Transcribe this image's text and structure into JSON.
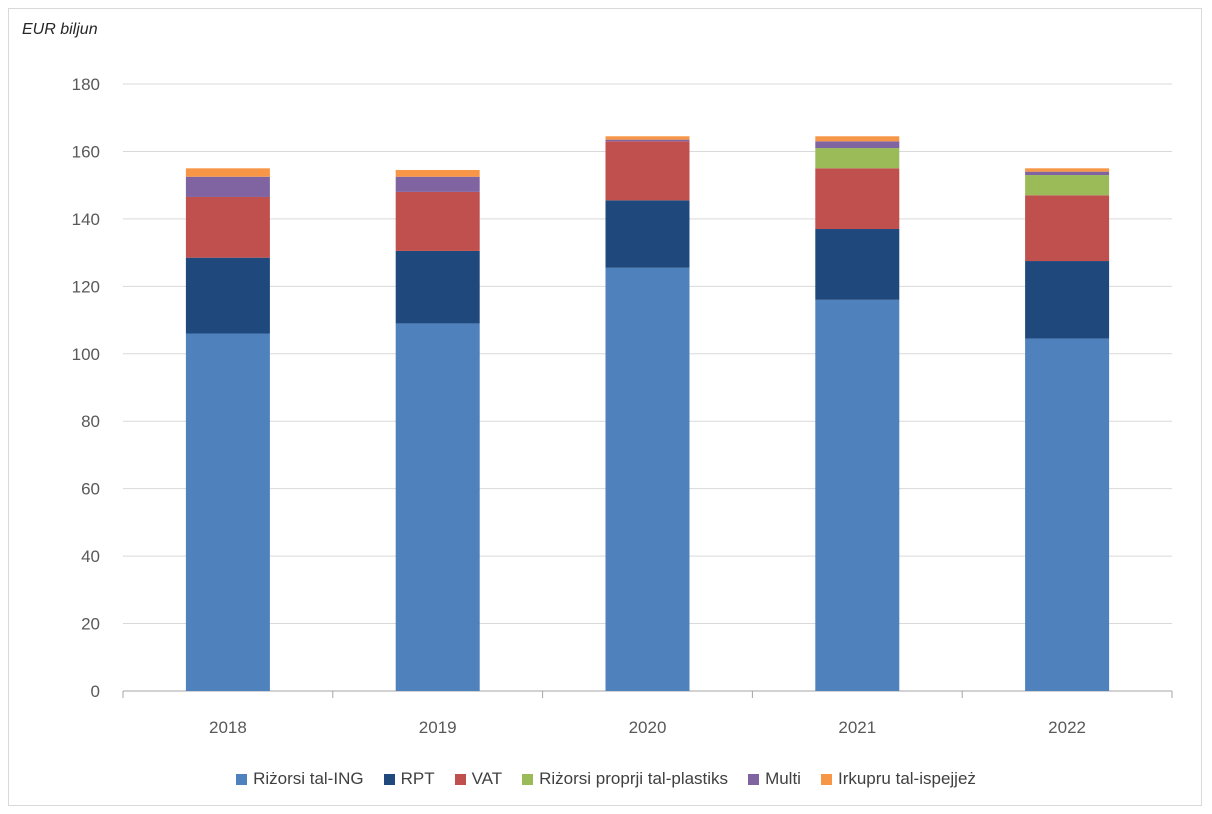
{
  "chart_data": {
    "type": "bar",
    "stacked": true,
    "title": "",
    "ylabel": "EUR biljun",
    "xlabel": "",
    "categories": [
      "2018",
      "2019",
      "2020",
      "2021",
      "2022"
    ],
    "ylim": [
      0,
      180
    ],
    "yticks": [
      0,
      20,
      40,
      60,
      80,
      100,
      120,
      140,
      160,
      180
    ],
    "grid": true,
    "legend_position": "bottom",
    "series": [
      {
        "name": "Riżorsi tal-ING",
        "color": "#4f81bd",
        "values": [
          106,
          109,
          125.5,
          116,
          104.5
        ]
      },
      {
        "name": "RPT",
        "color": "#1f497d",
        "values": [
          22.5,
          21.5,
          20,
          21,
          23
        ]
      },
      {
        "name": "VAT",
        "color": "#c0504d",
        "values": [
          18,
          17.5,
          17.5,
          18,
          19.5
        ]
      },
      {
        "name": "Riżorsi proprji tal-plastiks",
        "color": "#9bbb59",
        "values": [
          0,
          0,
          0,
          6,
          6
        ]
      },
      {
        "name": "Multi",
        "color": "#8064a2",
        "values": [
          6,
          4.5,
          0.5,
          2,
          1
        ]
      },
      {
        "name": "Irkupru tal-ispejjeż",
        "color": "#f79646",
        "values": [
          2.5,
          2,
          1,
          1.5,
          1
        ]
      }
    ]
  }
}
